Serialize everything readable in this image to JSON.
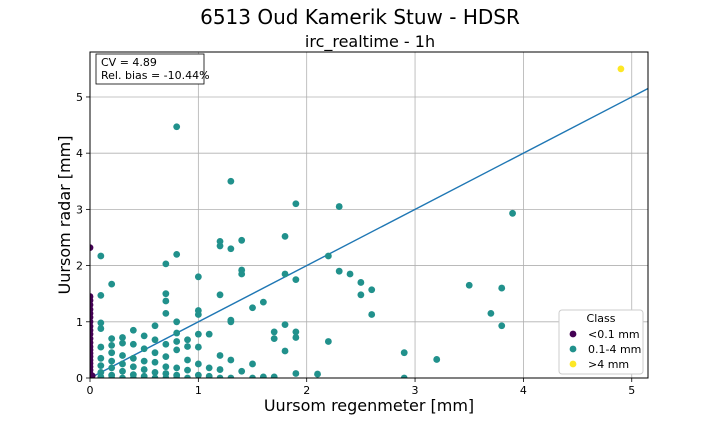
{
  "suptitle": "6513 Oud Kamerik Stuw - HDSR",
  "chart_data": {
    "type": "scatter",
    "title": "irc_realtime - 1h",
    "xlabel": "Uursom regenmeter [mm]",
    "ylabel": "Uursom radar [mm]",
    "xlim": [
      0,
      5.15
    ],
    "ylim": [
      0,
      5.8
    ],
    "xticks": [
      0,
      1,
      2,
      3,
      4,
      5
    ],
    "yticks": [
      0,
      1,
      2,
      3,
      4,
      5
    ],
    "grid": true,
    "stats": {
      "cv": "CV = 4.89",
      "bias": "Rel. bias = -10.44%"
    },
    "fit_line": {
      "slope": 1.0,
      "intercept": 0.0,
      "color": "#1f77b4"
    },
    "legend": {
      "title": "Class",
      "placement": "lower-right"
    },
    "series": [
      {
        "name": "<0.1 mm",
        "color": "#440154",
        "points": [
          [
            0,
            2.32
          ],
          [
            0,
            1.45
          ],
          [
            0,
            1.38
          ],
          [
            0,
            1.3
          ],
          [
            0,
            1.22
          ],
          [
            0,
            1.15
          ],
          [
            0,
            1.08
          ],
          [
            0,
            1.0
          ],
          [
            0,
            0.92
          ],
          [
            0,
            0.85
          ],
          [
            0,
            0.78
          ],
          [
            0,
            0.7
          ],
          [
            0,
            0.63
          ],
          [
            0,
            0.56
          ],
          [
            0,
            0.5
          ],
          [
            0,
            0.44
          ],
          [
            0,
            0.38
          ],
          [
            0,
            0.32
          ],
          [
            0,
            0.26
          ],
          [
            0,
            0.2
          ],
          [
            0,
            0.14
          ],
          [
            0,
            0.08
          ],
          [
            0,
            0.03
          ],
          [
            0,
            0.0
          ],
          [
            0.02,
            0.04
          ]
        ]
      },
      {
        "name": "0.1-4 mm",
        "color": "#21918c",
        "points": [
          [
            0.8,
            4.47
          ],
          [
            1.3,
            3.5
          ],
          [
            1.9,
            3.1
          ],
          [
            2.3,
            3.05
          ],
          [
            3.9,
            2.93
          ],
          [
            1.8,
            2.52
          ],
          [
            1.2,
            2.43
          ],
          [
            1.4,
            2.45
          ],
          [
            1.2,
            2.35
          ],
          [
            1.3,
            2.3
          ],
          [
            0.8,
            2.2
          ],
          [
            0.1,
            2.17
          ],
          [
            2.2,
            2.17
          ],
          [
            0.7,
            2.03
          ],
          [
            1.4,
            1.92
          ],
          [
            2.3,
            1.9
          ],
          [
            1.4,
            1.85
          ],
          [
            1.8,
            1.85
          ],
          [
            2.4,
            1.85
          ],
          [
            1.0,
            1.8
          ],
          [
            1.9,
            1.75
          ],
          [
            2.5,
            1.7
          ],
          [
            0.2,
            1.67
          ],
          [
            3.5,
            1.65
          ],
          [
            3.8,
            1.6
          ],
          [
            2.6,
            1.57
          ],
          [
            0.7,
            1.5
          ],
          [
            1.2,
            1.48
          ],
          [
            2.5,
            1.48
          ],
          [
            0.1,
            1.47
          ],
          [
            1.6,
            1.35
          ],
          [
            0.7,
            1.37
          ],
          [
            1.5,
            1.25
          ],
          [
            1.0,
            1.2
          ],
          [
            0.7,
            1.15
          ],
          [
            1.0,
            1.13
          ],
          [
            2.6,
            1.13
          ],
          [
            3.7,
            1.15
          ],
          [
            1.3,
            1.03
          ],
          [
            1.3,
            1.0
          ],
          [
            0.8,
            1.0
          ],
          [
            0.1,
            0.98
          ],
          [
            1.8,
            0.95
          ],
          [
            3.8,
            0.93
          ],
          [
            0.6,
            0.93
          ],
          [
            0.1,
            0.88
          ],
          [
            0.4,
            0.85
          ],
          [
            1.7,
            0.82
          ],
          [
            1.9,
            0.82
          ],
          [
            0.8,
            0.8
          ],
          [
            1.1,
            0.78
          ],
          [
            1.0,
            0.78
          ],
          [
            0.5,
            0.75
          ],
          [
            0.3,
            0.72
          ],
          [
            1.9,
            0.72
          ],
          [
            1.7,
            0.7
          ],
          [
            0.2,
            0.7
          ],
          [
            0.6,
            0.68
          ],
          [
            0.9,
            0.68
          ],
          [
            0.8,
            0.65
          ],
          [
            2.2,
            0.65
          ],
          [
            0.3,
            0.62
          ],
          [
            0.7,
            0.6
          ],
          [
            0.4,
            0.6
          ],
          [
            0.2,
            0.58
          ],
          [
            0.9,
            0.56
          ],
          [
            1.0,
            0.55
          ],
          [
            0.1,
            0.55
          ],
          [
            0.5,
            0.52
          ],
          [
            0.8,
            0.5
          ],
          [
            1.8,
            0.48
          ],
          [
            2.9,
            0.45
          ],
          [
            0.6,
            0.45
          ],
          [
            0.2,
            0.45
          ],
          [
            0.3,
            0.4
          ],
          [
            1.2,
            0.4
          ],
          [
            0.7,
            0.38
          ],
          [
            0.1,
            0.35
          ],
          [
            0.4,
            0.35
          ],
          [
            3.2,
            0.33
          ],
          [
            0.9,
            0.32
          ],
          [
            1.3,
            0.32
          ],
          [
            0.5,
            0.3
          ],
          [
            0.2,
            0.3
          ],
          [
            0.6,
            0.28
          ],
          [
            1.5,
            0.25
          ],
          [
            1.0,
            0.25
          ],
          [
            0.3,
            0.25
          ],
          [
            0.1,
            0.22
          ],
          [
            0.7,
            0.2
          ],
          [
            0.4,
            0.2
          ],
          [
            0.8,
            0.18
          ],
          [
            1.1,
            0.18
          ],
          [
            0.2,
            0.18
          ],
          [
            0.5,
            0.15
          ],
          [
            1.2,
            0.15
          ],
          [
            0.9,
            0.14
          ],
          [
            1.4,
            0.12
          ],
          [
            0.3,
            0.12
          ],
          [
            0.1,
            0.1
          ],
          [
            0.6,
            0.1
          ],
          [
            0.7,
            0.08
          ],
          [
            1.9,
            0.08
          ],
          [
            2.1,
            0.07
          ],
          [
            0.4,
            0.06
          ],
          [
            0.8,
            0.05
          ],
          [
            1.0,
            0.05
          ],
          [
            0.2,
            0.05
          ],
          [
            0.5,
            0.03
          ],
          [
            1.1,
            0.03
          ],
          [
            0.1,
            0.02
          ],
          [
            1.6,
            0.02
          ],
          [
            1.7,
            0.02
          ],
          [
            1.2,
            0.0
          ],
          [
            1.3,
            0.0
          ],
          [
            1.5,
            0.0
          ],
          [
            2.9,
            0.0
          ],
          [
            0.3,
            0.0
          ],
          [
            0.6,
            0.0
          ],
          [
            0.9,
            0.0
          ],
          [
            0.7,
            0.0
          ],
          [
            0.4,
            0.0
          ],
          [
            0.2,
            0.0
          ],
          [
            0.8,
            0.0
          ]
        ]
      },
      {
        "name": ">4 mm",
        "color": "#fde725",
        "points": [
          [
            4.9,
            5.5
          ]
        ]
      }
    ]
  }
}
